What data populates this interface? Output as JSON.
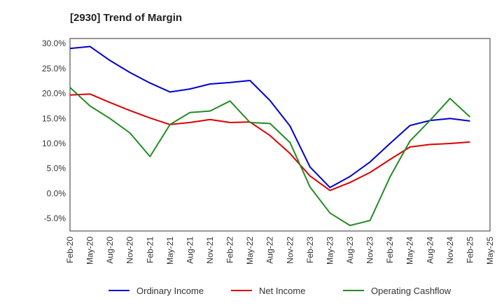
{
  "chart_data": {
    "type": "line",
    "title": "[2930]  Trend of Margin",
    "xlabel": "",
    "ylabel": "",
    "ylim": [
      -7.5,
      31.0
    ],
    "y_ticks": [
      30.0,
      25.0,
      20.0,
      15.0,
      10.0,
      5.0,
      0.0,
      -5.0
    ],
    "y_tick_labels": [
      "30.0%",
      "25.0%",
      "20.0%",
      "15.0%",
      "10.0%",
      "5.0%",
      "0.0%",
      "-5.0%"
    ],
    "categories": [
      "Feb-20",
      "May-20",
      "Aug-20",
      "Nov-20",
      "Feb-21",
      "May-21",
      "Aug-21",
      "Nov-21",
      "Feb-22",
      "May-22",
      "Aug-22",
      "Nov-22",
      "Feb-23",
      "May-23",
      "Aug-23",
      "Nov-23",
      "Feb-24",
      "May-24",
      "Aug-24",
      "Nov-24",
      "Feb-25",
      "May-25"
    ],
    "grid": true,
    "legend_position": "bottom",
    "series": [
      {
        "name": "Ordinary Income",
        "color": "#0000cc",
        "values": [
          29.0,
          29.4,
          26.6,
          24.2,
          22.1,
          20.3,
          20.9,
          21.9,
          22.2,
          22.6,
          18.6,
          13.5,
          5.3,
          1.2,
          3.4,
          6.3,
          10.0,
          13.6,
          14.6,
          15.0,
          14.5,
          null
        ]
      },
      {
        "name": "Net Income",
        "color": "#dd0000",
        "values": [
          19.7,
          19.9,
          18.2,
          16.6,
          15.1,
          13.8,
          14.2,
          14.8,
          14.2,
          14.3,
          11.6,
          8.0,
          3.5,
          0.6,
          2.2,
          4.2,
          6.8,
          9.3,
          9.8,
          10.0,
          10.3,
          null
        ]
      },
      {
        "name": "Operating Cashflow",
        "color": "#228b22",
        "values": [
          21.2,
          17.5,
          15.0,
          12.1,
          7.4,
          13.8,
          16.2,
          16.5,
          18.5,
          14.2,
          14.0,
          10.2,
          1.3,
          -3.9,
          -6.4,
          -5.4,
          3.3,
          10.5,
          14.6,
          19.0,
          15.3,
          null
        ]
      }
    ]
  }
}
